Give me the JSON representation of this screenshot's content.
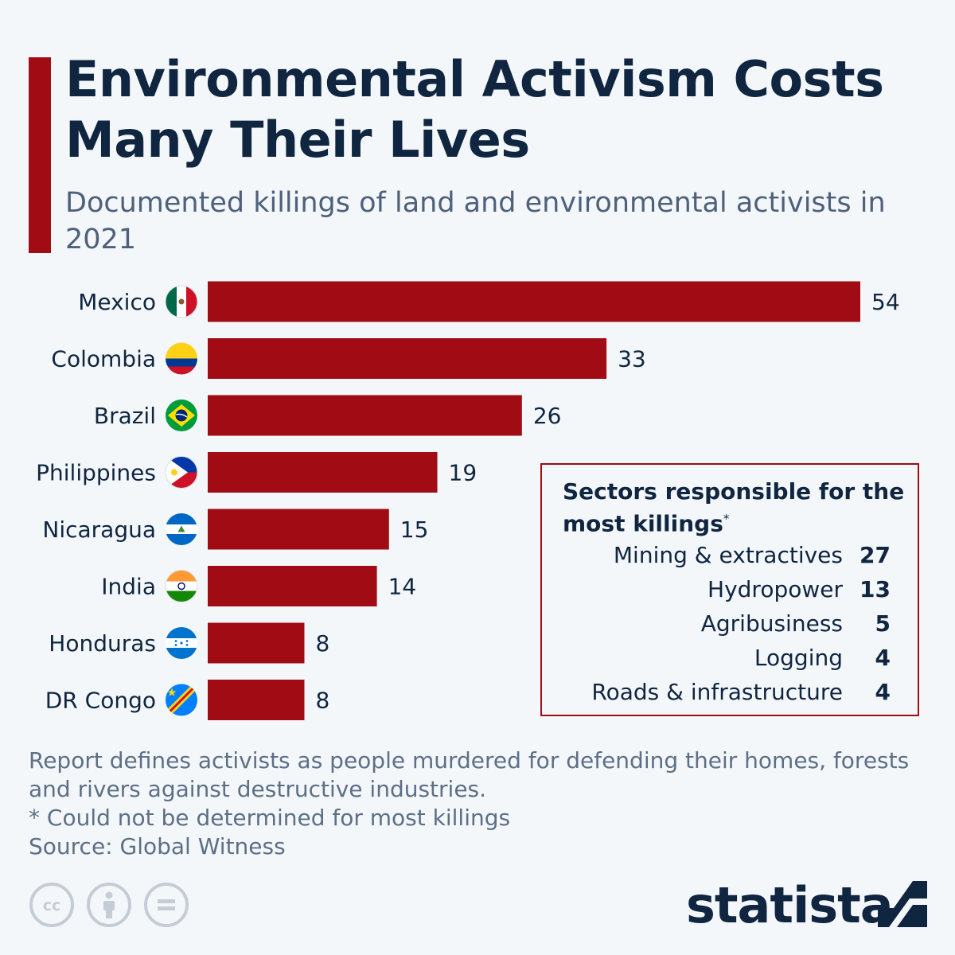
{
  "title": "Environmental Activism Costs Many Their Lives",
  "subtitle": "Documented killings of land and environmental activists in 2021",
  "colors": {
    "bar": "#a00b14",
    "title": "#0f2540",
    "subtitle": "#4e617a",
    "background": "#f4f7fa"
  },
  "chart_data": {
    "type": "bar",
    "orientation": "horizontal",
    "categories": [
      "Mexico",
      "Colombia",
      "Brazil",
      "Philippines",
      "Nicaragua",
      "India",
      "Honduras",
      "DR Congo"
    ],
    "values": [
      54,
      33,
      26,
      19,
      15,
      14,
      8,
      8
    ],
    "flags": [
      "mexico-flag-icon",
      "colombia-flag-icon",
      "brazil-flag-icon",
      "philippines-flag-icon",
      "nicaragua-flag-icon",
      "india-flag-icon",
      "honduras-flag-icon",
      "dr-congo-flag-icon"
    ],
    "title": "Environmental Activism Costs Many Their Lives",
    "subtitle": "Documented killings of land and environmental activists in 2021",
    "xlim": [
      0,
      54
    ],
    "grid": false,
    "data_labels": true
  },
  "sectors": {
    "title": "Sectors responsible for the most killings",
    "title_marker": "*",
    "items": [
      {
        "name": "Mining & extractives",
        "value": "27"
      },
      {
        "name": "Hydropower",
        "value": "13"
      },
      {
        "name": "Agribusiness",
        "value": "5"
      },
      {
        "name": "Logging",
        "value": "4"
      },
      {
        "name": "Roads & infrastructure",
        "value": "4"
      }
    ]
  },
  "notes": {
    "definition": "Report defines activists as people murdered for defending their homes, forests and rivers against destructive industries.",
    "footnote": "* Could not be determined for most killings",
    "source": "Source: Global Witness"
  },
  "brand": {
    "name": "statista"
  },
  "license_icons": [
    "cc-icon",
    "attribution-icon",
    "no-derivatives-icon"
  ]
}
